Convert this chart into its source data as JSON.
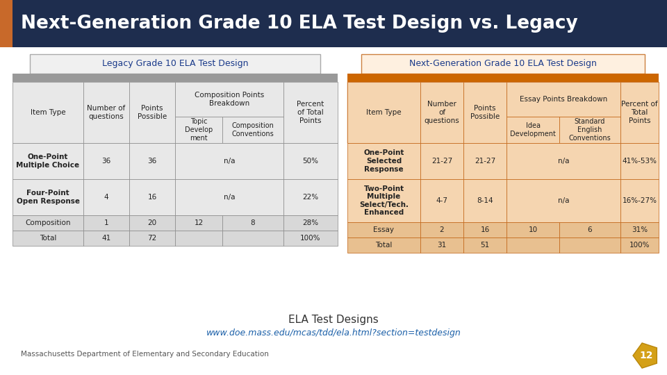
{
  "title": "Next-Generation Grade 10 ELA Test Design vs. Legacy",
  "title_bg": "#1e2d4e",
  "title_color": "#ffffff",
  "title_accent": "#c8692a",
  "left_table_title": "Legacy Grade 10 ELA Test Design",
  "right_table_title": "Next-Generation Grade 10 ELA Test Design",
  "footer_line1": "ELA Test Designs",
  "footer_line2": "www.doe.mass.edu/mcas/tdd/ela.html?section=testdesign",
  "footer_credit": "Massachusetts Department of Elementary and Secondary Education",
  "footer_number": "12",
  "left_header_bg": "#999999",
  "left_cell_bg": "#e8e8e8",
  "left_cell_bg_alt": "#d8d8d8",
  "right_header_bg": "#cc6600",
  "right_cell_bg": "#f5d5b0",
  "right_cell_bg_alt": "#e8c090",
  "star_color": "#d4a017",
  "text_dark": "#222222",
  "text_blue_title": "#1a3a8a",
  "link_color": "#1a5fa8"
}
